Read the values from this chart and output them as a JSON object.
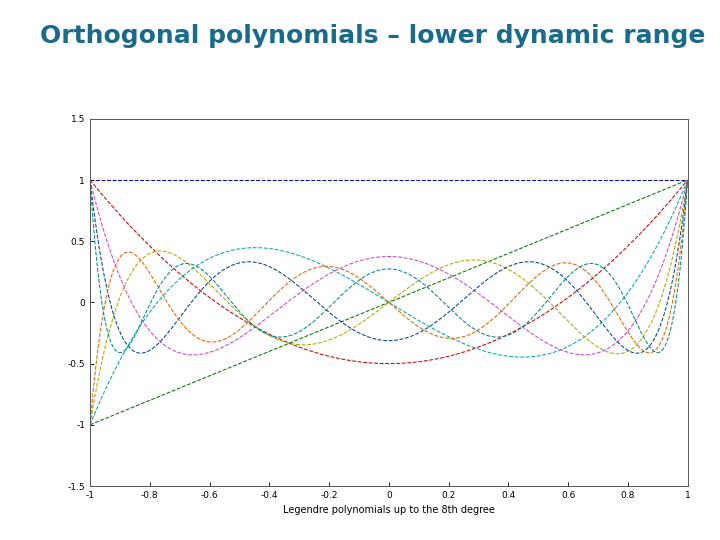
{
  "title": "Orthogonal polynomials – lower dynamic range",
  "title_color": "#1a6b8a",
  "title_fontsize": 18,
  "xlabel": "Legendre polynomials up to the 8th degree",
  "xlabel_fontsize": 7,
  "xlim": [
    -1,
    1
  ],
  "ylim": [
    -1.5,
    1.5
  ],
  "yticks": [
    -1.5,
    -1,
    -0.5,
    0,
    0.5,
    1,
    1.5
  ],
  "xticks": [
    -1,
    -0.8,
    -0.6,
    -0.4,
    -0.2,
    0,
    0.2,
    0.4,
    0.6,
    0.8,
    1
  ],
  "n_points": 500,
  "degree_max": 8,
  "background_color": "#ffffff",
  "plot_bg_color": "#ffffff",
  "line_colors": [
    "#0000cc",
    "#007700",
    "#cc0000",
    "#00aaaa",
    "#cc44cc",
    "#aaaa00",
    "#004488",
    "#dd6600",
    "#008888"
  ],
  "line_width": 0.75,
  "line_style": "--"
}
